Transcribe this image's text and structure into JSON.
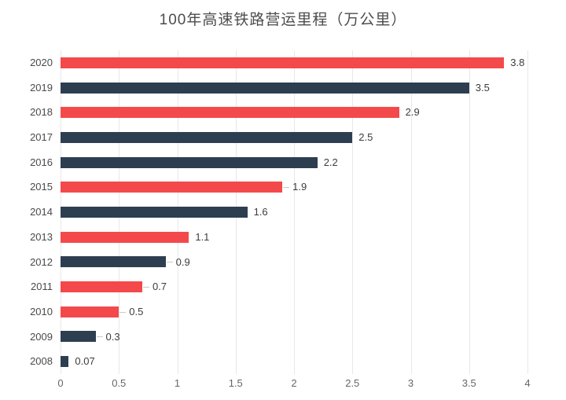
{
  "title": "100年高速铁路营运里程（万公里）",
  "colors": {
    "red": "#f3494b",
    "navy": "#2e3e51",
    "grid": "#e8e8e8",
    "connector": "#c9c9c9",
    "title_text": "#4c4c4c",
    "category_text": "#4a4a4a",
    "value_text": "#3c3c3c",
    "tick_text": "#666666",
    "background": "#ffffff"
  },
  "chart_data": {
    "type": "bar",
    "orientation": "horizontal",
    "title": "100年高速铁路营运里程（万公里）",
    "xlabel": "",
    "ylabel": "",
    "categories": [
      "2020",
      "2019",
      "2018",
      "2017",
      "2016",
      "2015",
      "2014",
      "2013",
      "2012",
      "2011",
      "2010",
      "2009",
      "2008"
    ],
    "values": [
      3.8,
      3.5,
      2.9,
      2.5,
      2.2,
      1.9,
      1.6,
      1.1,
      0.9,
      0.7,
      0.5,
      0.3,
      0.07
    ],
    "value_labels": [
      "3.8",
      "3.5",
      "2.9",
      "2.5",
      "2.2",
      "1.9",
      "1.6",
      "1.1",
      "0.9",
      "0.7",
      "0.5",
      "0.3",
      "0.07"
    ],
    "bar_colors": [
      "#f3494b",
      "#2e3e51",
      "#f3494b",
      "#2e3e51",
      "#2e3e51",
      "#f3494b",
      "#2e3e51",
      "#f3494b",
      "#2e3e51",
      "#f3494b",
      "#f3494b",
      "#2e3e51",
      "#2e3e51"
    ],
    "label_connectors": [
      false,
      false,
      false,
      false,
      false,
      true,
      false,
      false,
      true,
      true,
      true,
      true,
      false
    ],
    "xticks": [
      "0",
      "0.5",
      "1",
      "1.5",
      "2",
      "2.5",
      "3",
      "3.5",
      "4"
    ],
    "xtick_values": [
      0,
      0.5,
      1,
      1.5,
      2,
      2.5,
      3,
      3.5,
      4
    ],
    "xlim": [
      0,
      4
    ],
    "grid": true,
    "legend": null
  }
}
